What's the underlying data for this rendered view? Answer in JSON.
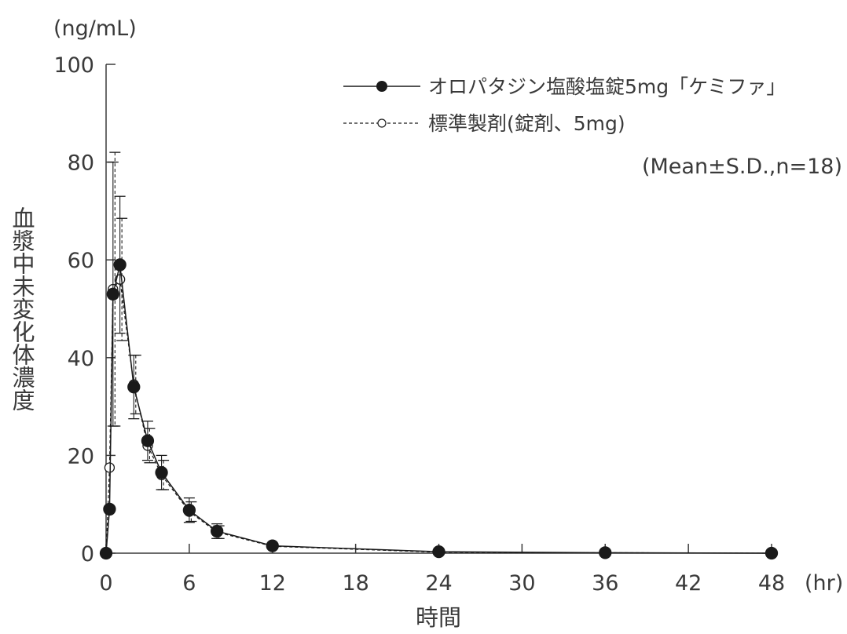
{
  "chart_data": {
    "type": "line",
    "y_unit": "(ng/mL)",
    "x_unit": "(hr)",
    "xlabel": "時間",
    "ylabel": "血漿中未変化体濃度",
    "xlim": [
      0,
      48
    ],
    "ylim": [
      0,
      100
    ],
    "x_ticks": [
      0,
      6,
      12,
      18,
      24,
      30,
      36,
      42,
      48
    ],
    "y_ticks": [
      0,
      20,
      40,
      60,
      80,
      100
    ],
    "stat_note": "(Mean±S.D.,n=18)",
    "grid": false,
    "legend_position": "top-right",
    "series": [
      {
        "name": "オロパタジン塩酸塩錠5mg「ケミファ」",
        "marker": "filled-circle",
        "line_style": "solid",
        "color": "#1a1a1a",
        "x": [
          0,
          0.25,
          0.5,
          1,
          2,
          3,
          4,
          6,
          8,
          12,
          24,
          36,
          48
        ],
        "y": [
          0,
          9,
          53,
          59,
          34,
          23,
          16.5,
          8.8,
          4.5,
          1.5,
          0.3,
          0.1,
          0.0
        ],
        "sd": [
          0,
          0,
          27,
          14,
          6.5,
          4.0,
          3.5,
          2.5,
          1.5,
          0,
          0,
          0,
          0
        ]
      },
      {
        "name": "標準製剤(錠剤、5mg)",
        "marker": "open-circle",
        "line_style": "dashed",
        "color": "#1a1a1a",
        "x": [
          0,
          0.25,
          0.5,
          1,
          2,
          3,
          4,
          6,
          8,
          12,
          24,
          36,
          48
        ],
        "y": [
          0,
          17.5,
          54,
          56,
          34.5,
          22,
          16,
          8.5,
          4.3,
          1.4,
          0.2,
          0.1,
          0.0
        ],
        "sd": [
          0,
          0,
          28,
          12.5,
          6.0,
          3.5,
          3.0,
          2.0,
          1.3,
          0,
          0,
          0,
          0
        ]
      }
    ]
  }
}
